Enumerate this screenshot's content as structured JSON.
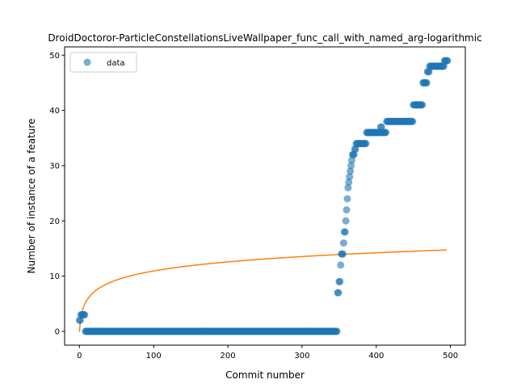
{
  "chart_data": {
    "type": "scatter",
    "title": "DroidDoctoror-ParticleConstellationsLiveWallpaper_func_call_with_named_arg-logarithmic",
    "xlabel": "Commit number",
    "ylabel": "Number of instance of a feature",
    "xlim": [
      -20,
      520
    ],
    "ylim": [
      -2.5,
      51.5
    ],
    "xticks": [
      0,
      100,
      200,
      300,
      400,
      500
    ],
    "yticks": [
      0,
      10,
      20,
      30,
      40,
      50
    ],
    "grid": false,
    "legend": {
      "placement": "upper-left",
      "entries": [
        "data"
      ]
    },
    "colors": {
      "data": "#1f77b4",
      "fit": "#ff7f0e"
    },
    "series": [
      {
        "name": "data",
        "kind": "scatter",
        "segments": [
          {
            "x_start": 0,
            "x_end": 1,
            "y": 2
          },
          {
            "x_start": 2,
            "x_end": 7,
            "y": 3
          },
          {
            "x_start": 8,
            "x_end": 347,
            "y": 0
          },
          {
            "x_start": 348,
            "x_end": 349,
            "y": 7
          },
          {
            "x_start": 350,
            "x_end": 351,
            "y": 9
          },
          {
            "x_start": 352,
            "x_end": 352,
            "y": 12
          },
          {
            "x_start": 353,
            "x_end": 355,
            "y": 14
          },
          {
            "x_start": 356,
            "x_end": 356,
            "y": 16
          },
          {
            "x_start": 357,
            "x_end": 358,
            "y": 18
          },
          {
            "x_start": 359,
            "x_end": 359,
            "y": 20
          },
          {
            "x_start": 360,
            "x_end": 360,
            "y": 22
          },
          {
            "x_start": 361,
            "x_end": 361,
            "y": 24
          },
          {
            "x_start": 362,
            "x_end": 362,
            "y": 26
          },
          {
            "x_start": 363,
            "x_end": 363,
            "y": 27
          },
          {
            "x_start": 364,
            "x_end": 364,
            "y": 28
          },
          {
            "x_start": 365,
            "x_end": 365,
            "y": 29
          },
          {
            "x_start": 366,
            "x_end": 366,
            "y": 30
          },
          {
            "x_start": 367,
            "x_end": 367,
            "y": 31
          },
          {
            "x_start": 368,
            "x_end": 370,
            "y": 32
          },
          {
            "x_start": 371,
            "x_end": 372,
            "y": 33
          },
          {
            "x_start": 373,
            "x_end": 386,
            "y": 34
          },
          {
            "x_start": 387,
            "x_end": 405,
            "y": 36
          },
          {
            "x_start": 406,
            "x_end": 407,
            "y": 37
          },
          {
            "x_start": 408,
            "x_end": 413,
            "y": 36
          },
          {
            "x_start": 414,
            "x_end": 449,
            "y": 38
          },
          {
            "x_start": 450,
            "x_end": 462,
            "y": 41
          },
          {
            "x_start": 463,
            "x_end": 468,
            "y": 45
          },
          {
            "x_start": 469,
            "x_end": 471,
            "y": 47
          },
          {
            "x_start": 472,
            "x_end": 491,
            "y": 48
          },
          {
            "x_start": 492,
            "x_end": 496,
            "y": 49
          }
        ]
      },
      {
        "name": "",
        "kind": "line",
        "model": "logarithmic",
        "a": 2.39,
        "b": 1,
        "c": -0.1,
        "x_range": [
          0,
          495
        ]
      }
    ]
  }
}
